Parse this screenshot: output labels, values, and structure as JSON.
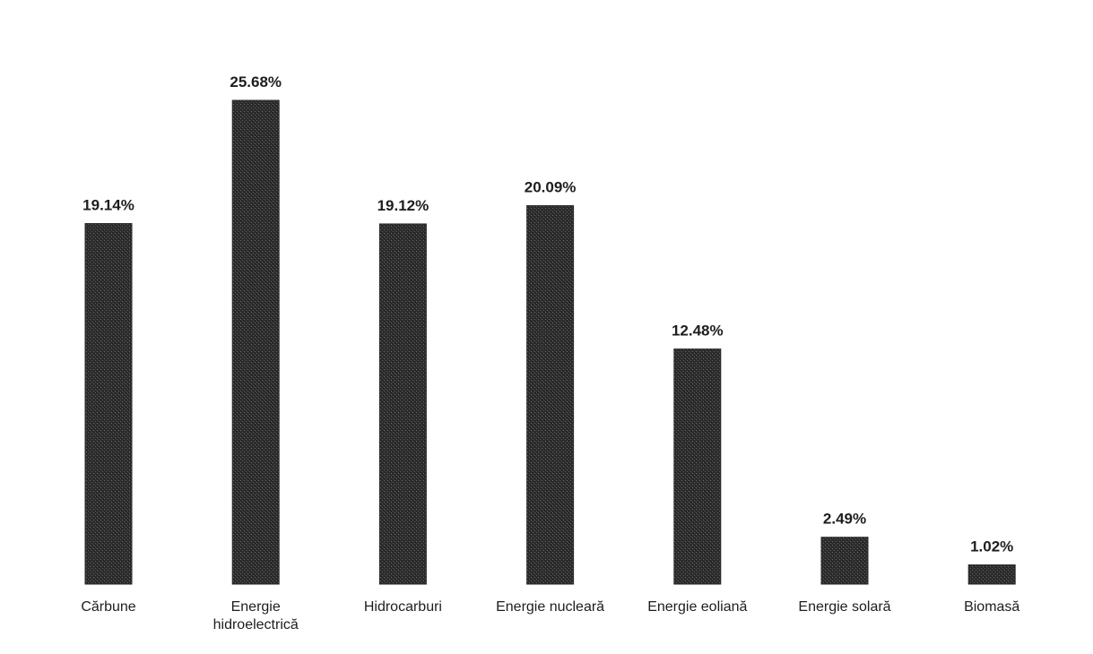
{
  "chart_data": {
    "type": "bar",
    "categories": [
      "Cărbune",
      "Energie hidroelectrică",
      "Hidrocarburi",
      "Energie nucleară",
      "Energie eoliană",
      "Energie solară",
      "Biomasă"
    ],
    "category_lines": [
      [
        "Cărbune"
      ],
      [
        "Energie",
        "hidroelectrică"
      ],
      [
        "Hidrocarburi"
      ],
      [
        "Energie nucleară"
      ],
      [
        "Energie eoliană"
      ],
      [
        "Energie solară"
      ],
      [
        "Biomasă"
      ]
    ],
    "values": [
      19.14,
      25.68,
      19.12,
      20.09,
      12.48,
      2.49,
      1.02
    ],
    "value_labels": [
      "19.14%",
      "25.68%",
      "19.12%",
      "20.09%",
      "12.48%",
      "2.49%",
      "1.02%"
    ],
    "title": "",
    "xlabel": "",
    "ylabel": "",
    "ylim": [
      0,
      25.68
    ],
    "grid": false,
    "legend": "none",
    "bar_color": "#2b2b2b"
  }
}
